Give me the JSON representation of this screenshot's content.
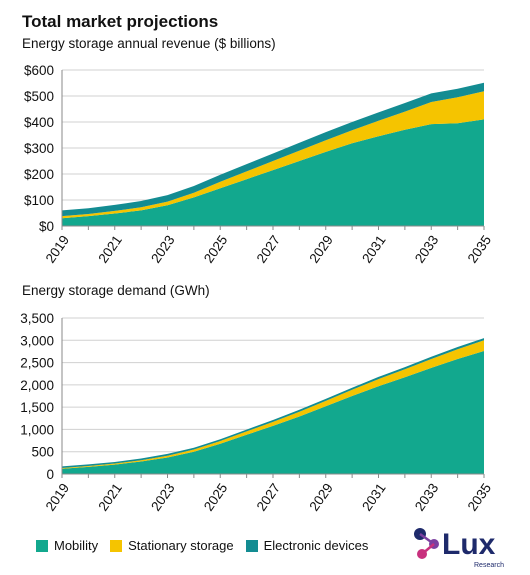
{
  "title": "Total market projections",
  "colors": {
    "mobility": "#12A88E",
    "stationary": "#F5C400",
    "electronic": "#138C92",
    "grid": "#D0D0D0",
    "axis": "#8A8A8A"
  },
  "legend": [
    {
      "label": "Mobility",
      "color": "#12A88E"
    },
    {
      "label": "Stationary storage",
      "color": "#F5C400"
    },
    {
      "label": "Electronic devices",
      "color": "#138C92"
    }
  ],
  "logo": {
    "text": "Lux",
    "subtext": "Research"
  },
  "chart_data": [
    {
      "type": "area",
      "stacked": true,
      "subtitle": "Energy storage annual revenue ($ billions)",
      "x": [
        2019,
        2020,
        2021,
        2022,
        2023,
        2024,
        2025,
        2026,
        2027,
        2028,
        2029,
        2030,
        2031,
        2032,
        2033,
        2034,
        2035
      ],
      "x_tick_labels": [
        "2019",
        "2021",
        "2023",
        "2025",
        "2027",
        "2029",
        "2031",
        "2033",
        "2035"
      ],
      "y_tick_labels": [
        "$0",
        "$100",
        "$200",
        "$300",
        "$400",
        "$500",
        "$600"
      ],
      "ylim": [
        0,
        600
      ],
      "grid": true,
      "series": [
        {
          "name": "Mobility",
          "values": [
            30,
            38,
            48,
            60,
            80,
            110,
            145,
            180,
            215,
            250,
            285,
            318,
            345,
            370,
            392,
            395,
            410
          ]
        },
        {
          "name": "Stationary storage",
          "values": [
            8,
            8,
            10,
            12,
            14,
            18,
            25,
            30,
            35,
            40,
            45,
            50,
            60,
            70,
            85,
            100,
            108
          ]
        },
        {
          "name": "Electronic devices",
          "values": [
            22,
            22,
            23,
            24,
            25,
            26,
            27,
            28,
            29,
            30,
            31,
            32,
            32,
            33,
            33,
            33,
            33
          ]
        }
      ]
    },
    {
      "type": "area",
      "stacked": true,
      "subtitle": "Energy storage demand (GWh)",
      "x": [
        2019,
        2020,
        2021,
        2022,
        2023,
        2024,
        2025,
        2026,
        2027,
        2028,
        2029,
        2030,
        2031,
        2032,
        2033,
        2034,
        2035
      ],
      "x_tick_labels": [
        "2019",
        "2021",
        "2023",
        "2025",
        "2027",
        "2029",
        "2031",
        "2033",
        "2035"
      ],
      "y_tick_labels": [
        "0",
        "500",
        "1,000",
        "1,500",
        "2,000",
        "2,500",
        "3,000",
        "3,500"
      ],
      "ylim": [
        0,
        3500
      ],
      "grid": true,
      "series": [
        {
          "name": "Mobility",
          "values": [
            120,
            160,
            210,
            280,
            370,
            500,
            680,
            880,
            1080,
            1290,
            1520,
            1750,
            1970,
            2170,
            2380,
            2580,
            2760
          ]
        },
        {
          "name": "Stationary storage",
          "values": [
            15,
            20,
            25,
            30,
            40,
            50,
            60,
            75,
            90,
            105,
            120,
            140,
            160,
            180,
            200,
            220,
            240
          ]
        },
        {
          "name": "Electronic devices",
          "values": [
            35,
            35,
            35,
            38,
            40,
            40,
            40,
            42,
            42,
            45,
            45,
            45,
            48,
            48,
            50,
            50,
            50
          ]
        }
      ]
    }
  ]
}
